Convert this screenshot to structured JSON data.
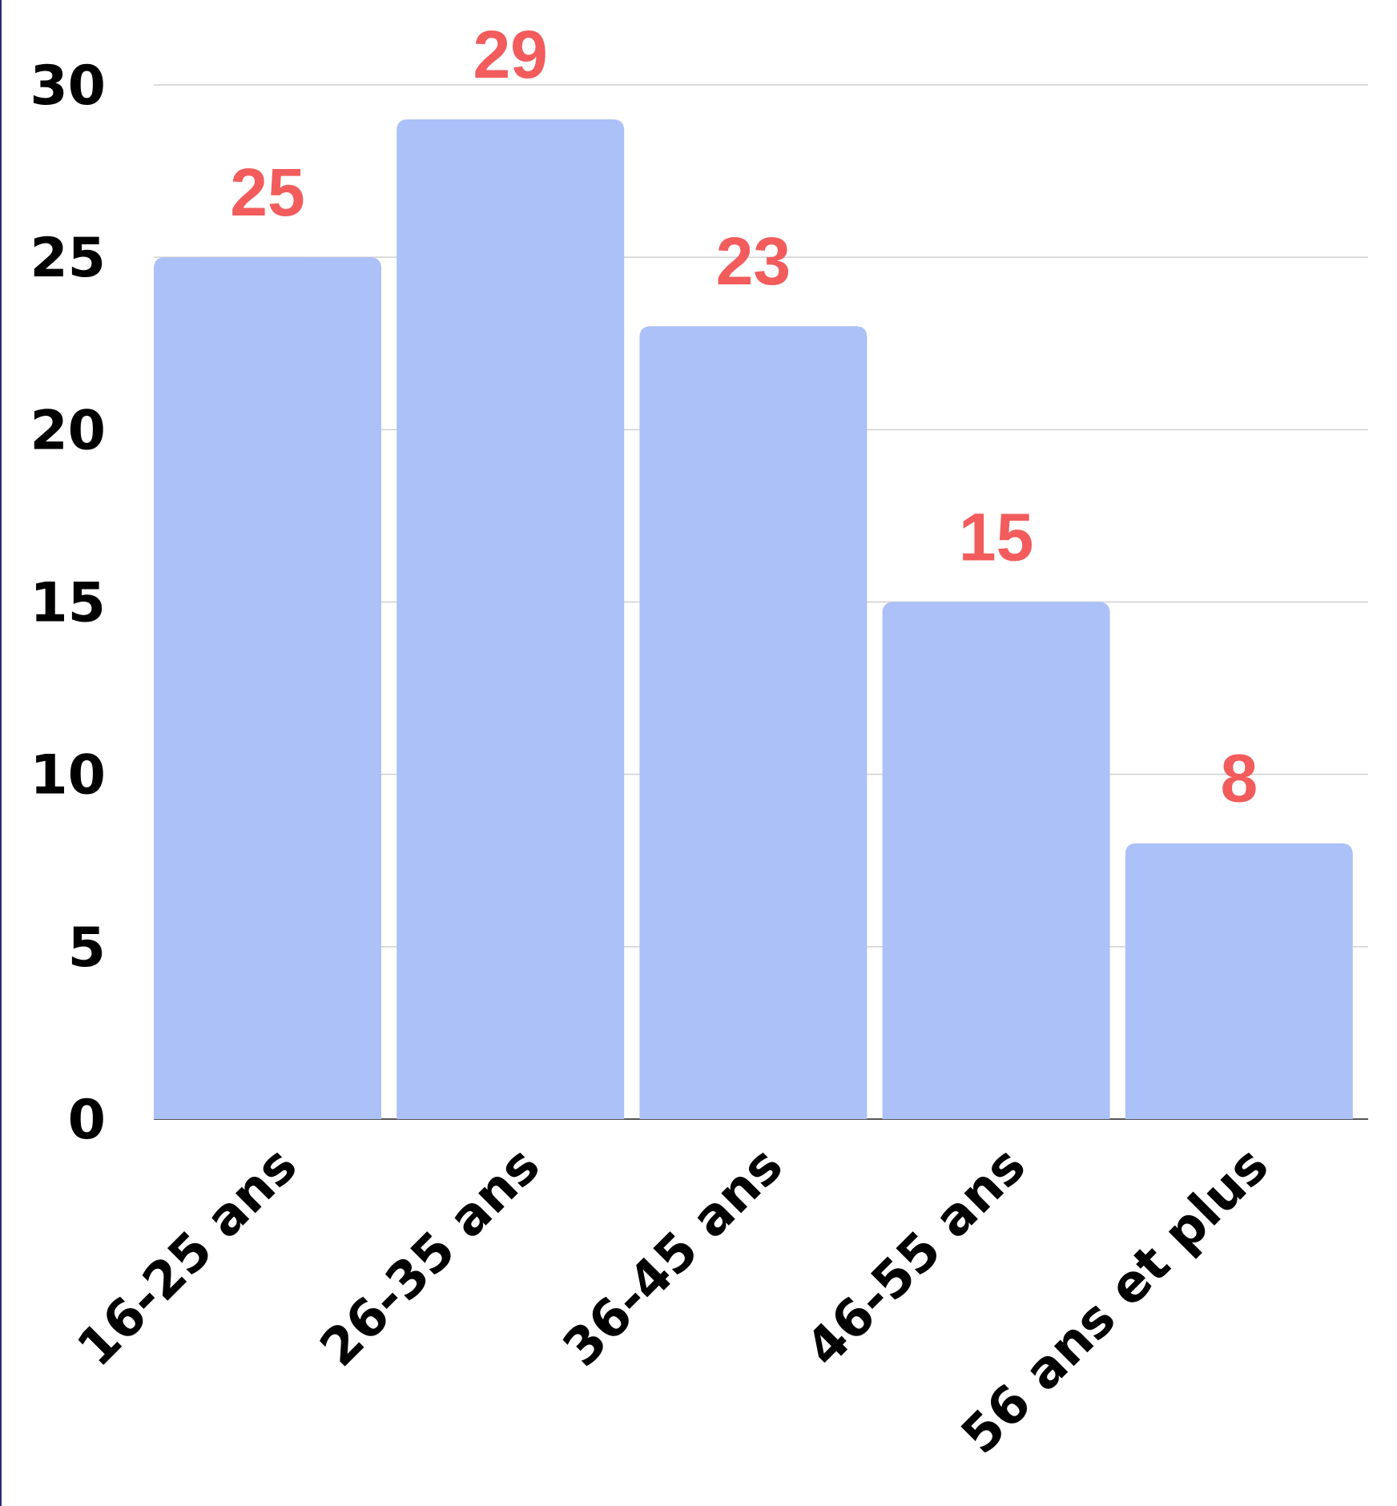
{
  "chart_data": {
    "type": "bar",
    "categories": [
      "16-25 ans",
      "26-35 ans",
      "36-45 ans",
      "46-55 ans",
      "56 ans et plus"
    ],
    "values": [
      25,
      29,
      23,
      15,
      8
    ],
    "data_labels": [
      "25",
      "29",
      "23",
      "15",
      "8"
    ],
    "title": "",
    "xlabel": "",
    "ylabel": "",
    "ylim": [
      0,
      30
    ],
    "yticks": [
      "0",
      "5",
      "10",
      "15",
      "20",
      "25",
      "30"
    ],
    "grid": true,
    "legend": "none",
    "colors": {
      "bar": "#abc1f7",
      "data_label": "#f25c5c",
      "grid": "#d0d0d0",
      "axis": "#555555",
      "text": "#000000"
    }
  }
}
